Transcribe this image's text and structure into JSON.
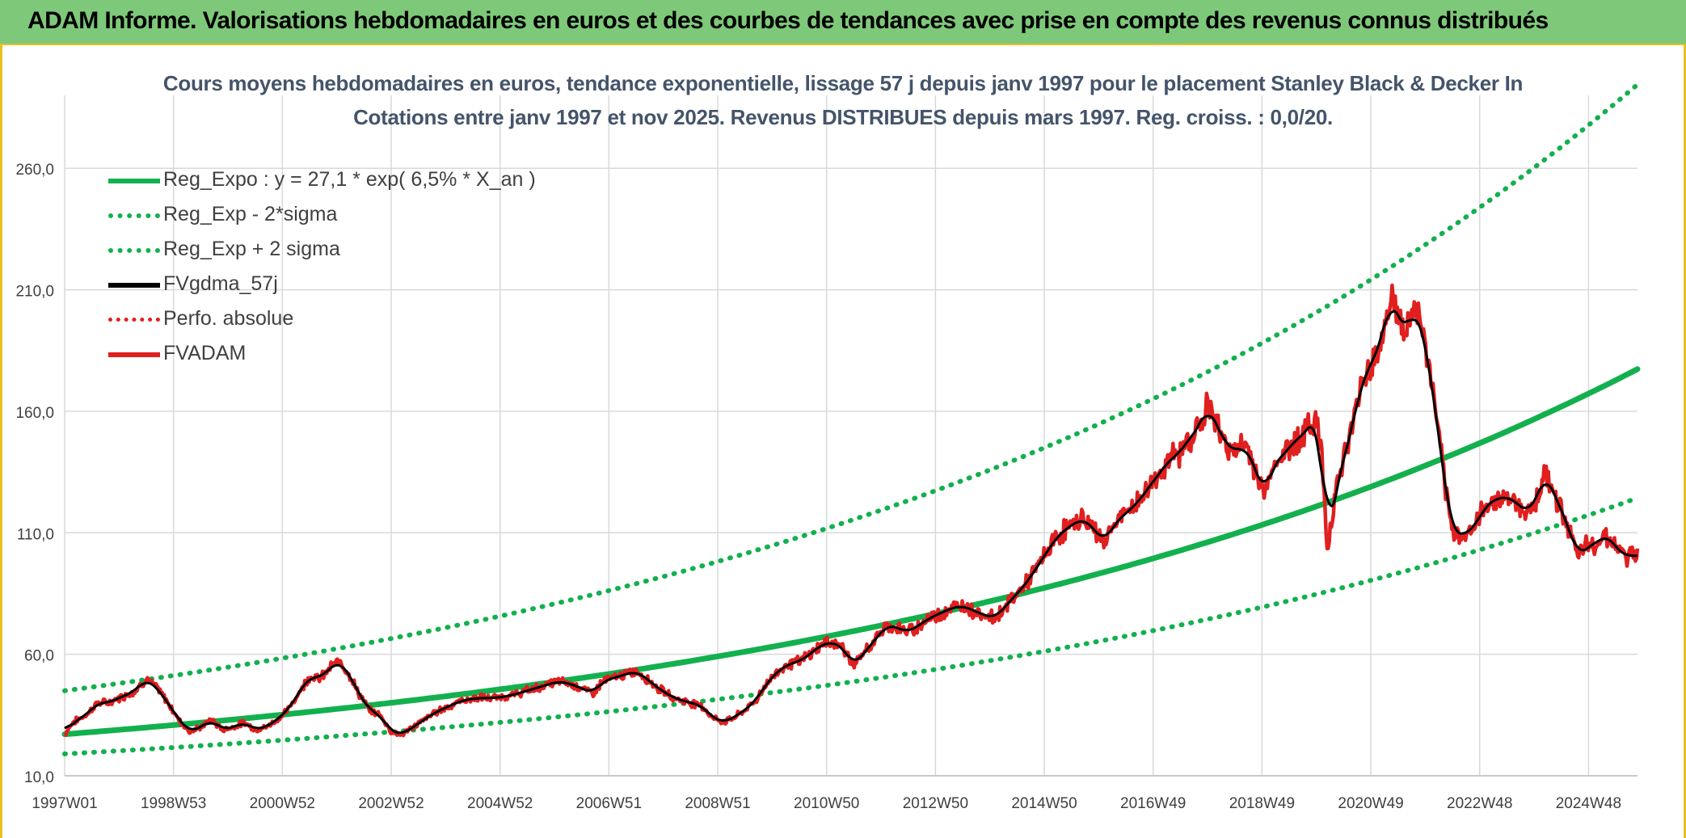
{
  "banner": {
    "title": "ADAM Informe. Valorisations hebdomadaires en euros et des courbes de tendances avec prise en compte des revenus connus distribués"
  },
  "chart_data": {
    "type": "line",
    "title": "Cours moyens hebdomadaires en euros, tendance exponentielle, lissage 57 j depuis janv 1997 pour le placement Stanley Black & Decker In",
    "subtitle": "Cotations entre janv 1997 et nov 2025. Revenus DISTRIBUES depuis mars 1997. Reg. croiss. : 0,0/20.",
    "xlabel": "",
    "ylabel": "",
    "ylim": [
      10,
      290
    ],
    "xlim": [
      1997.0,
      2025.9
    ],
    "y_ticks": [
      "10,0",
      "60,0",
      "110,0",
      "160,0",
      "210,0",
      "260,0"
    ],
    "y_tick_values": [
      10,
      60,
      110,
      160,
      210,
      260
    ],
    "x_ticks": [
      "1997W01",
      "1998W53",
      "2000W52",
      "2002W52",
      "2004W52",
      "2006W51",
      "2008W51",
      "2010W50",
      "2012W50",
      "2014W50",
      "2016W49",
      "2018W49",
      "2020W49",
      "2022W48",
      "2024W48"
    ],
    "x_tick_values": [
      1997.0,
      1999.0,
      2001.0,
      2003.0,
      2005.0,
      2007.0,
      2009.0,
      2011.0,
      2013.0,
      2015.0,
      2017.0,
      2019.0,
      2021.0,
      2023.0,
      2025.0
    ],
    "grid": true,
    "legend_position": "top-left",
    "regression": {
      "a": 27.1,
      "rate": 0.065,
      "lower": 19.0,
      "upper": 45.0
    },
    "price_points": [
      [
        1997.0,
        27
      ],
      [
        1997.15,
        32
      ],
      [
        1997.4,
        35
      ],
      [
        1997.6,
        40
      ],
      [
        1997.8,
        40
      ],
      [
        1998.0,
        42
      ],
      [
        1998.3,
        45
      ],
      [
        1998.5,
        50
      ],
      [
        1998.7,
        46
      ],
      [
        1998.9,
        40
      ],
      [
        1999.1,
        33
      ],
      [
        1999.3,
        28
      ],
      [
        1999.5,
        30
      ],
      [
        1999.7,
        33
      ],
      [
        1999.9,
        29
      ],
      [
        2000.1,
        30
      ],
      [
        2000.3,
        32
      ],
      [
        2000.5,
        29
      ],
      [
        2000.7,
        30
      ],
      [
        2000.9,
        33
      ],
      [
        2001.1,
        37
      ],
      [
        2001.3,
        44
      ],
      [
        2001.5,
        51
      ],
      [
        2001.7,
        50
      ],
      [
        2001.9,
        55
      ],
      [
        2002.05,
        57
      ],
      [
        2002.2,
        53
      ],
      [
        2002.4,
        44
      ],
      [
        2002.6,
        37
      ],
      [
        2002.8,
        35
      ],
      [
        2003.0,
        28
      ],
      [
        2003.2,
        27
      ],
      [
        2003.4,
        30
      ],
      [
        2003.6,
        33
      ],
      [
        2003.8,
        36
      ],
      [
        2004.0,
        38
      ],
      [
        2004.3,
        41
      ],
      [
        2004.6,
        42
      ],
      [
        2004.9,
        42
      ],
      [
        2005.2,
        43
      ],
      [
        2005.5,
        45
      ],
      [
        2005.8,
        47
      ],
      [
        2006.1,
        49
      ],
      [
        2006.4,
        47
      ],
      [
        2006.7,
        44
      ],
      [
        2006.9,
        49
      ],
      [
        2007.2,
        51
      ],
      [
        2007.5,
        53
      ],
      [
        2007.7,
        50
      ],
      [
        2007.9,
        46
      ],
      [
        2008.2,
        42
      ],
      [
        2008.5,
        40
      ],
      [
        2008.7,
        39
      ],
      [
        2008.9,
        34
      ],
      [
        2009.1,
        32
      ],
      [
        2009.3,
        34
      ],
      [
        2009.5,
        37
      ],
      [
        2009.7,
        41
      ],
      [
        2009.9,
        48
      ],
      [
        2010.1,
        53
      ],
      [
        2010.3,
        56
      ],
      [
        2010.5,
        57
      ],
      [
        2010.7,
        60
      ],
      [
        2010.9,
        64
      ],
      [
        2011.1,
        65
      ],
      [
        2011.3,
        63
      ],
      [
        2011.5,
        55
      ],
      [
        2011.7,
        61
      ],
      [
        2011.9,
        66
      ],
      [
        2012.1,
        72
      ],
      [
        2012.3,
        71
      ],
      [
        2012.5,
        69
      ],
      [
        2012.7,
        72
      ],
      [
        2012.9,
        75
      ],
      [
        2013.1,
        77
      ],
      [
        2013.3,
        79
      ],
      [
        2013.5,
        80
      ],
      [
        2013.7,
        78
      ],
      [
        2013.9,
        76
      ],
      [
        2014.1,
        75
      ],
      [
        2014.3,
        80
      ],
      [
        2014.5,
        85
      ],
      [
        2014.7,
        90
      ],
      [
        2014.9,
        97
      ],
      [
        2015.1,
        104
      ],
      [
        2015.3,
        110
      ],
      [
        2015.5,
        113
      ],
      [
        2015.7,
        116
      ],
      [
        2015.9,
        112
      ],
      [
        2016.1,
        106
      ],
      [
        2016.3,
        114
      ],
      [
        2016.5,
        118
      ],
      [
        2016.7,
        122
      ],
      [
        2016.9,
        128
      ],
      [
        2017.1,
        134
      ],
      [
        2017.3,
        140
      ],
      [
        2017.5,
        143
      ],
      [
        2017.7,
        150
      ],
      [
        2017.9,
        155
      ],
      [
        2018.0,
        164
      ],
      [
        2018.1,
        157
      ],
      [
        2018.3,
        148
      ],
      [
        2018.5,
        143
      ],
      [
        2018.7,
        146
      ],
      [
        2018.9,
        135
      ],
      [
        2019.05,
        125
      ],
      [
        2019.2,
        138
      ],
      [
        2019.4,
        142
      ],
      [
        2019.6,
        148
      ],
      [
        2019.8,
        151
      ],
      [
        2020.0,
        158
      ],
      [
        2020.1,
        141
      ],
      [
        2020.2,
        103
      ],
      [
        2020.35,
        128
      ],
      [
        2020.5,
        140
      ],
      [
        2020.65,
        152
      ],
      [
        2020.8,
        170
      ],
      [
        2020.95,
        177
      ],
      [
        2021.1,
        184
      ],
      [
        2021.25,
        193
      ],
      [
        2021.35,
        208
      ],
      [
        2021.5,
        199
      ],
      [
        2021.65,
        192
      ],
      [
        2021.8,
        203
      ],
      [
        2021.9,
        198
      ],
      [
        2022.1,
        175
      ],
      [
        2022.25,
        150
      ],
      [
        2022.4,
        122
      ],
      [
        2022.5,
        110
      ],
      [
        2022.7,
        109
      ],
      [
        2022.9,
        112
      ],
      [
        2023.1,
        121
      ],
      [
        2023.3,
        124
      ],
      [
        2023.5,
        125
      ],
      [
        2023.7,
        122
      ],
      [
        2023.9,
        118
      ],
      [
        2024.1,
        127
      ],
      [
        2024.2,
        135
      ],
      [
        2024.35,
        127
      ],
      [
        2024.5,
        119
      ],
      [
        2024.65,
        112
      ],
      [
        2024.8,
        99
      ],
      [
        2024.95,
        105
      ],
      [
        2025.1,
        104
      ],
      [
        2025.3,
        110
      ],
      [
        2025.5,
        104
      ],
      [
        2025.7,
        100
      ],
      [
        2025.9,
        101
      ]
    ],
    "series": [
      {
        "name": "Reg_Expo : y = 27,1 * exp( 6,5% *  X_an )",
        "color": "#13b04e",
        "style": "solid"
      },
      {
        "name": "Reg_Exp - 2*sigma",
        "color": "#13b04e",
        "style": "dotted"
      },
      {
        "name": "Reg_Exp + 2 sigma",
        "color": "#13b04e",
        "style": "dotted"
      },
      {
        "name": "FVgdma_57j",
        "color": "#000000",
        "style": "solid"
      },
      {
        "name": "Perfo. absolue",
        "color": "#e11f1f",
        "style": "dotted"
      },
      {
        "name": "FVADAM",
        "color": "#e11f1f",
        "style": "solid"
      }
    ]
  }
}
